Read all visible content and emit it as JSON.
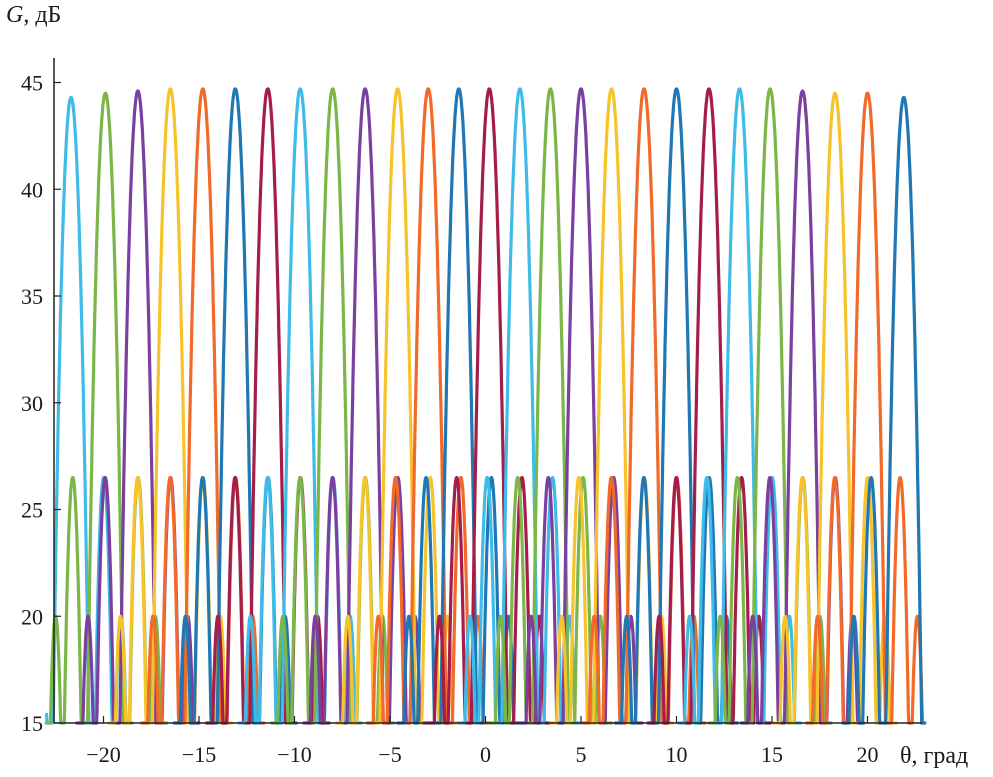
{
  "chart_data": {
    "type": "line",
    "ylabel_symbol": "G",
    "ylabel_unit": ", дБ",
    "xlabel": "θ, град",
    "xlim": [
      -23,
      23
    ],
    "ylim": [
      15,
      47
    ],
    "xticks": [
      -20,
      -15,
      -10,
      -5,
      0,
      5,
      10,
      15,
      20
    ],
    "xtick_labels": [
      "−20",
      "−15",
      "−10",
      "−5",
      "0",
      "5",
      "10",
      "15",
      "20"
    ],
    "yticks": [
      15,
      20,
      25,
      30,
      35,
      40,
      45
    ],
    "ytick_labels": [
      "15",
      "20",
      "25",
      "30",
      "35",
      "40",
      "45"
    ],
    "grid": false,
    "legend": "none",
    "beam_width_deg": 0.9,
    "side_lobe_level": [
      26.5,
      20.0
    ],
    "floor": 15,
    "series": [
      {
        "peak_x": -21.7,
        "peak_y": 44.3,
        "color": "#3fbbe8"
      },
      {
        "peak_x": -19.9,
        "peak_y": 44.5,
        "color": "#7ab648"
      },
      {
        "peak_x": -18.2,
        "peak_y": 44.6,
        "color": "#7b3fa0"
      },
      {
        "peak_x": -16.5,
        "peak_y": 44.7,
        "color": "#f6c32a"
      },
      {
        "peak_x": -14.8,
        "peak_y": 44.7,
        "color": "#f26a2a"
      },
      {
        "peak_x": -13.1,
        "peak_y": 44.7,
        "color": "#1f77b4"
      },
      {
        "peak_x": -11.4,
        "peak_y": 44.7,
        "color": "#a51d4a"
      },
      {
        "peak_x": -9.7,
        "peak_y": 44.7,
        "color": "#3fbbe8"
      },
      {
        "peak_x": -8.0,
        "peak_y": 44.7,
        "color": "#7ab648"
      },
      {
        "peak_x": -6.3,
        "peak_y": 44.7,
        "color": "#7b3fa0"
      },
      {
        "peak_x": -4.6,
        "peak_y": 44.7,
        "color": "#f6c32a"
      },
      {
        "peak_x": -3.0,
        "peak_y": 44.7,
        "color": "#f26a2a"
      },
      {
        "peak_x": -1.4,
        "peak_y": 44.7,
        "color": "#1f77b4"
      },
      {
        "peak_x": 0.2,
        "peak_y": 44.7,
        "color": "#a51d4a"
      },
      {
        "peak_x": 1.8,
        "peak_y": 44.7,
        "color": "#3fbbe8"
      },
      {
        "peak_x": 3.4,
        "peak_y": 44.7,
        "color": "#7ab648"
      },
      {
        "peak_x": 5.0,
        "peak_y": 44.7,
        "color": "#7b3fa0"
      },
      {
        "peak_x": 6.6,
        "peak_y": 44.7,
        "color": "#f6c32a"
      },
      {
        "peak_x": 8.3,
        "peak_y": 44.7,
        "color": "#f26a2a"
      },
      {
        "peak_x": 10.0,
        "peak_y": 44.7,
        "color": "#1f77b4"
      },
      {
        "peak_x": 11.7,
        "peak_y": 44.7,
        "color": "#a51d4a"
      },
      {
        "peak_x": 13.3,
        "peak_y": 44.7,
        "color": "#3fbbe8"
      },
      {
        "peak_x": 14.9,
        "peak_y": 44.7,
        "color": "#7ab648"
      },
      {
        "peak_x": 16.6,
        "peak_y": 44.6,
        "color": "#7b3fa0"
      },
      {
        "peak_x": 18.3,
        "peak_y": 44.5,
        "color": "#f6c32a"
      },
      {
        "peak_x": 20.0,
        "peak_y": 44.5,
        "color": "#f26a2a"
      },
      {
        "peak_x": 21.9,
        "peak_y": 44.3,
        "color": "#1f77b4"
      }
    ]
  }
}
